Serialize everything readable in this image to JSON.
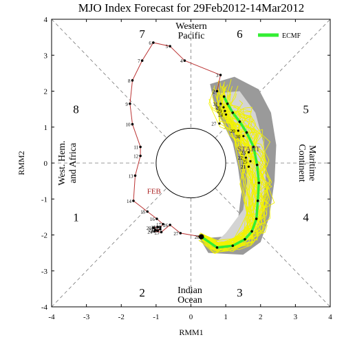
{
  "chart_data": {
    "type": "line",
    "title": "MJO Index Forecast for 29Feb2012-14Mar2012",
    "xlabel": "RMM1",
    "ylabel": "RMM2",
    "xlim": [
      -4,
      4
    ],
    "ylim": [
      -4,
      4
    ],
    "xticks": [
      -4,
      -3,
      -2,
      -1,
      0,
      1,
      2,
      3,
      4
    ],
    "yticks": [
      -4,
      -3,
      -2,
      -1,
      0,
      1,
      2,
      3,
      4
    ],
    "phase_labels": [
      {
        "text": "1",
        "x": -3.3,
        "y": -1.5
      },
      {
        "text": "2",
        "x": -1.4,
        "y": -3.6
      },
      {
        "text": "3",
        "x": 1.4,
        "y": -3.6
      },
      {
        "text": "4",
        "x": 3.3,
        "y": -1.5
      },
      {
        "text": "5",
        "x": 3.3,
        "y": 1.5
      },
      {
        "text": "6",
        "x": 1.4,
        "y": 3.6
      },
      {
        "text": "7",
        "x": -1.4,
        "y": 3.6
      },
      {
        "text": "8",
        "x": -3.3,
        "y": 1.5
      }
    ],
    "region_labels": {
      "top": [
        "Western",
        "Pacific"
      ],
      "bottom": [
        "Indian",
        "Ocean"
      ],
      "left": [
        "West. Hem.",
        "and Africa"
      ],
      "right": [
        "Maritime",
        "Continent"
      ]
    },
    "legend": {
      "label": "ECMF",
      "color": "#33ee33",
      "position": "top-right"
    },
    "annotations": [
      {
        "text": "FEB",
        "x": -1.26,
        "y": -0.85,
        "color": "#aa2222"
      },
      {
        "text": "START",
        "x": 1.33,
        "y": 0.33,
        "color": "#664466"
      }
    ],
    "observed": {
      "name": "observed",
      "color": "#bb3333",
      "points": [
        {
          "label": "2",
          "x": 0.75,
          "y": 2.0
        },
        {
          "label": "3",
          "x": 0.85,
          "y": 2.45
        },
        {
          "label": "4",
          "x": -0.18,
          "y": 2.85
        },
        {
          "label": "5",
          "x": -0.6,
          "y": 3.25
        },
        {
          "label": "6",
          "x": -1.08,
          "y": 3.35
        },
        {
          "label": "7",
          "x": -1.4,
          "y": 2.85
        },
        {
          "label": "8",
          "x": -1.68,
          "y": 2.3
        },
        {
          "label": "9",
          "x": -1.75,
          "y": 1.65
        },
        {
          "label": "10",
          "x": -1.68,
          "y": 1.08
        },
        {
          "label": "11",
          "x": -1.45,
          "y": 0.45
        },
        {
          "label": "12",
          "x": -1.45,
          "y": 0.2
        },
        {
          "label": "13",
          "x": -1.6,
          "y": -0.35
        },
        {
          "label": "14",
          "x": -1.65,
          "y": -1.05
        },
        {
          "label": "15",
          "x": -1.25,
          "y": -1.35
        },
        {
          "label": "16",
          "x": -0.98,
          "y": -1.55
        },
        {
          "label": "17",
          "x": -0.8,
          "y": -1.7
        },
        {
          "label": "18",
          "x": -0.88,
          "y": -1.78
        },
        {
          "label": "19",
          "x": -0.95,
          "y": -1.78
        },
        {
          "label": "20",
          "x": -1.08,
          "y": -1.8
        },
        {
          "label": "21",
          "x": -1.02,
          "y": -1.86
        },
        {
          "label": "22",
          "x": -0.88,
          "y": -1.84
        },
        {
          "label": "23",
          "x": -0.95,
          "y": -1.88
        },
        {
          "label": "24",
          "x": -1.05,
          "y": -1.9
        },
        {
          "label": "25",
          "x": -0.85,
          "y": -1.92
        },
        {
          "label": "26",
          "x": -0.6,
          "y": -1.72
        },
        {
          "label": "27",
          "x": -0.3,
          "y": -1.95
        },
        {
          "label": "28",
          "x": 0.3,
          "y": -2.05
        }
      ]
    },
    "forecast_labels": [
      {
        "label": "31",
        "x": 0.7,
        "y": 1.65
      },
      {
        "label": "26",
        "x": 0.78,
        "y": 1.55
      },
      {
        "label": "29",
        "x": 0.82,
        "y": 1.45
      },
      {
        "label": "24",
        "x": 0.85,
        "y": 1.35
      },
      {
        "label": "27",
        "x": 0.66,
        "y": 1.1
      },
      {
        "label": "20",
        "x": 1.2,
        "y": 0.9
      },
      {
        "label": "30",
        "x": 1.35,
        "y": 0.75
      },
      {
        "label": "23",
        "x": 1.5,
        "y": 0.3
      },
      {
        "label": "22",
        "x": 1.42,
        "y": 0.15
      },
      {
        "label": "25",
        "x": 1.55,
        "y": 0.05
      },
      {
        "label": "21",
        "x": 1.5,
        "y": -0.1
      }
    ],
    "ensemble_mean": {
      "name": "ECMF",
      "color": "#33ee33",
      "points": [
        {
          "x": 0.3,
          "y": -2.05
        },
        {
          "x": 0.75,
          "y": -2.35
        },
        {
          "x": 1.2,
          "y": -2.3
        },
        {
          "x": 1.55,
          "y": -2.12
        },
        {
          "x": 1.75,
          "y": -1.9
        },
        {
          "x": 1.88,
          "y": -1.55
        },
        {
          "x": 1.92,
          "y": -1.05
        },
        {
          "x": 1.95,
          "y": -0.55
        },
        {
          "x": 1.9,
          "y": -0.05
        },
        {
          "x": 1.8,
          "y": 0.45
        },
        {
          "x": 1.6,
          "y": 0.85
        },
        {
          "x": 1.4,
          "y": 1.15
        },
        {
          "x": 1.2,
          "y": 1.4
        },
        {
          "x": 1.05,
          "y": 1.65
        },
        {
          "x": 0.95,
          "y": 1.85
        }
      ]
    },
    "plume_outer": {
      "color": "#9a9a9a",
      "polygon": [
        [
          0.55,
          2.2
        ],
        [
          1.25,
          2.4
        ],
        [
          1.95,
          2.05
        ],
        [
          2.3,
          1.4
        ],
        [
          2.45,
          0.5
        ],
        [
          2.4,
          -0.5
        ],
        [
          2.25,
          -1.5
        ],
        [
          2.0,
          -2.2
        ],
        [
          1.5,
          -2.55
        ],
        [
          0.5,
          -2.5
        ],
        [
          0.25,
          -2.1
        ],
        [
          0.9,
          -2.05
        ],
        [
          1.35,
          -1.6
        ],
        [
          1.45,
          -0.8
        ],
        [
          1.35,
          -0.1
        ],
        [
          1.2,
          0.55
        ],
        [
          0.95,
          1.05
        ],
        [
          0.7,
          1.5
        ]
      ]
    },
    "plume_inner": {
      "color": "#d4d4d4",
      "polygon": [
        [
          0.85,
          1.95
        ],
        [
          1.4,
          2.0
        ],
        [
          1.85,
          1.4
        ],
        [
          2.1,
          0.5
        ],
        [
          2.15,
          -0.5
        ],
        [
          2.0,
          -1.5
        ],
        [
          1.75,
          -2.05
        ],
        [
          1.2,
          -2.35
        ],
        [
          0.6,
          -2.3
        ],
        [
          1.0,
          -1.95
        ],
        [
          1.5,
          -1.3
        ],
        [
          1.62,
          -0.5
        ],
        [
          1.55,
          0.3
        ],
        [
          1.3,
          0.95
        ],
        [
          1.0,
          1.45
        ]
      ]
    },
    "ensemble_color": "#f2f200",
    "ensemble_members": 40
  }
}
